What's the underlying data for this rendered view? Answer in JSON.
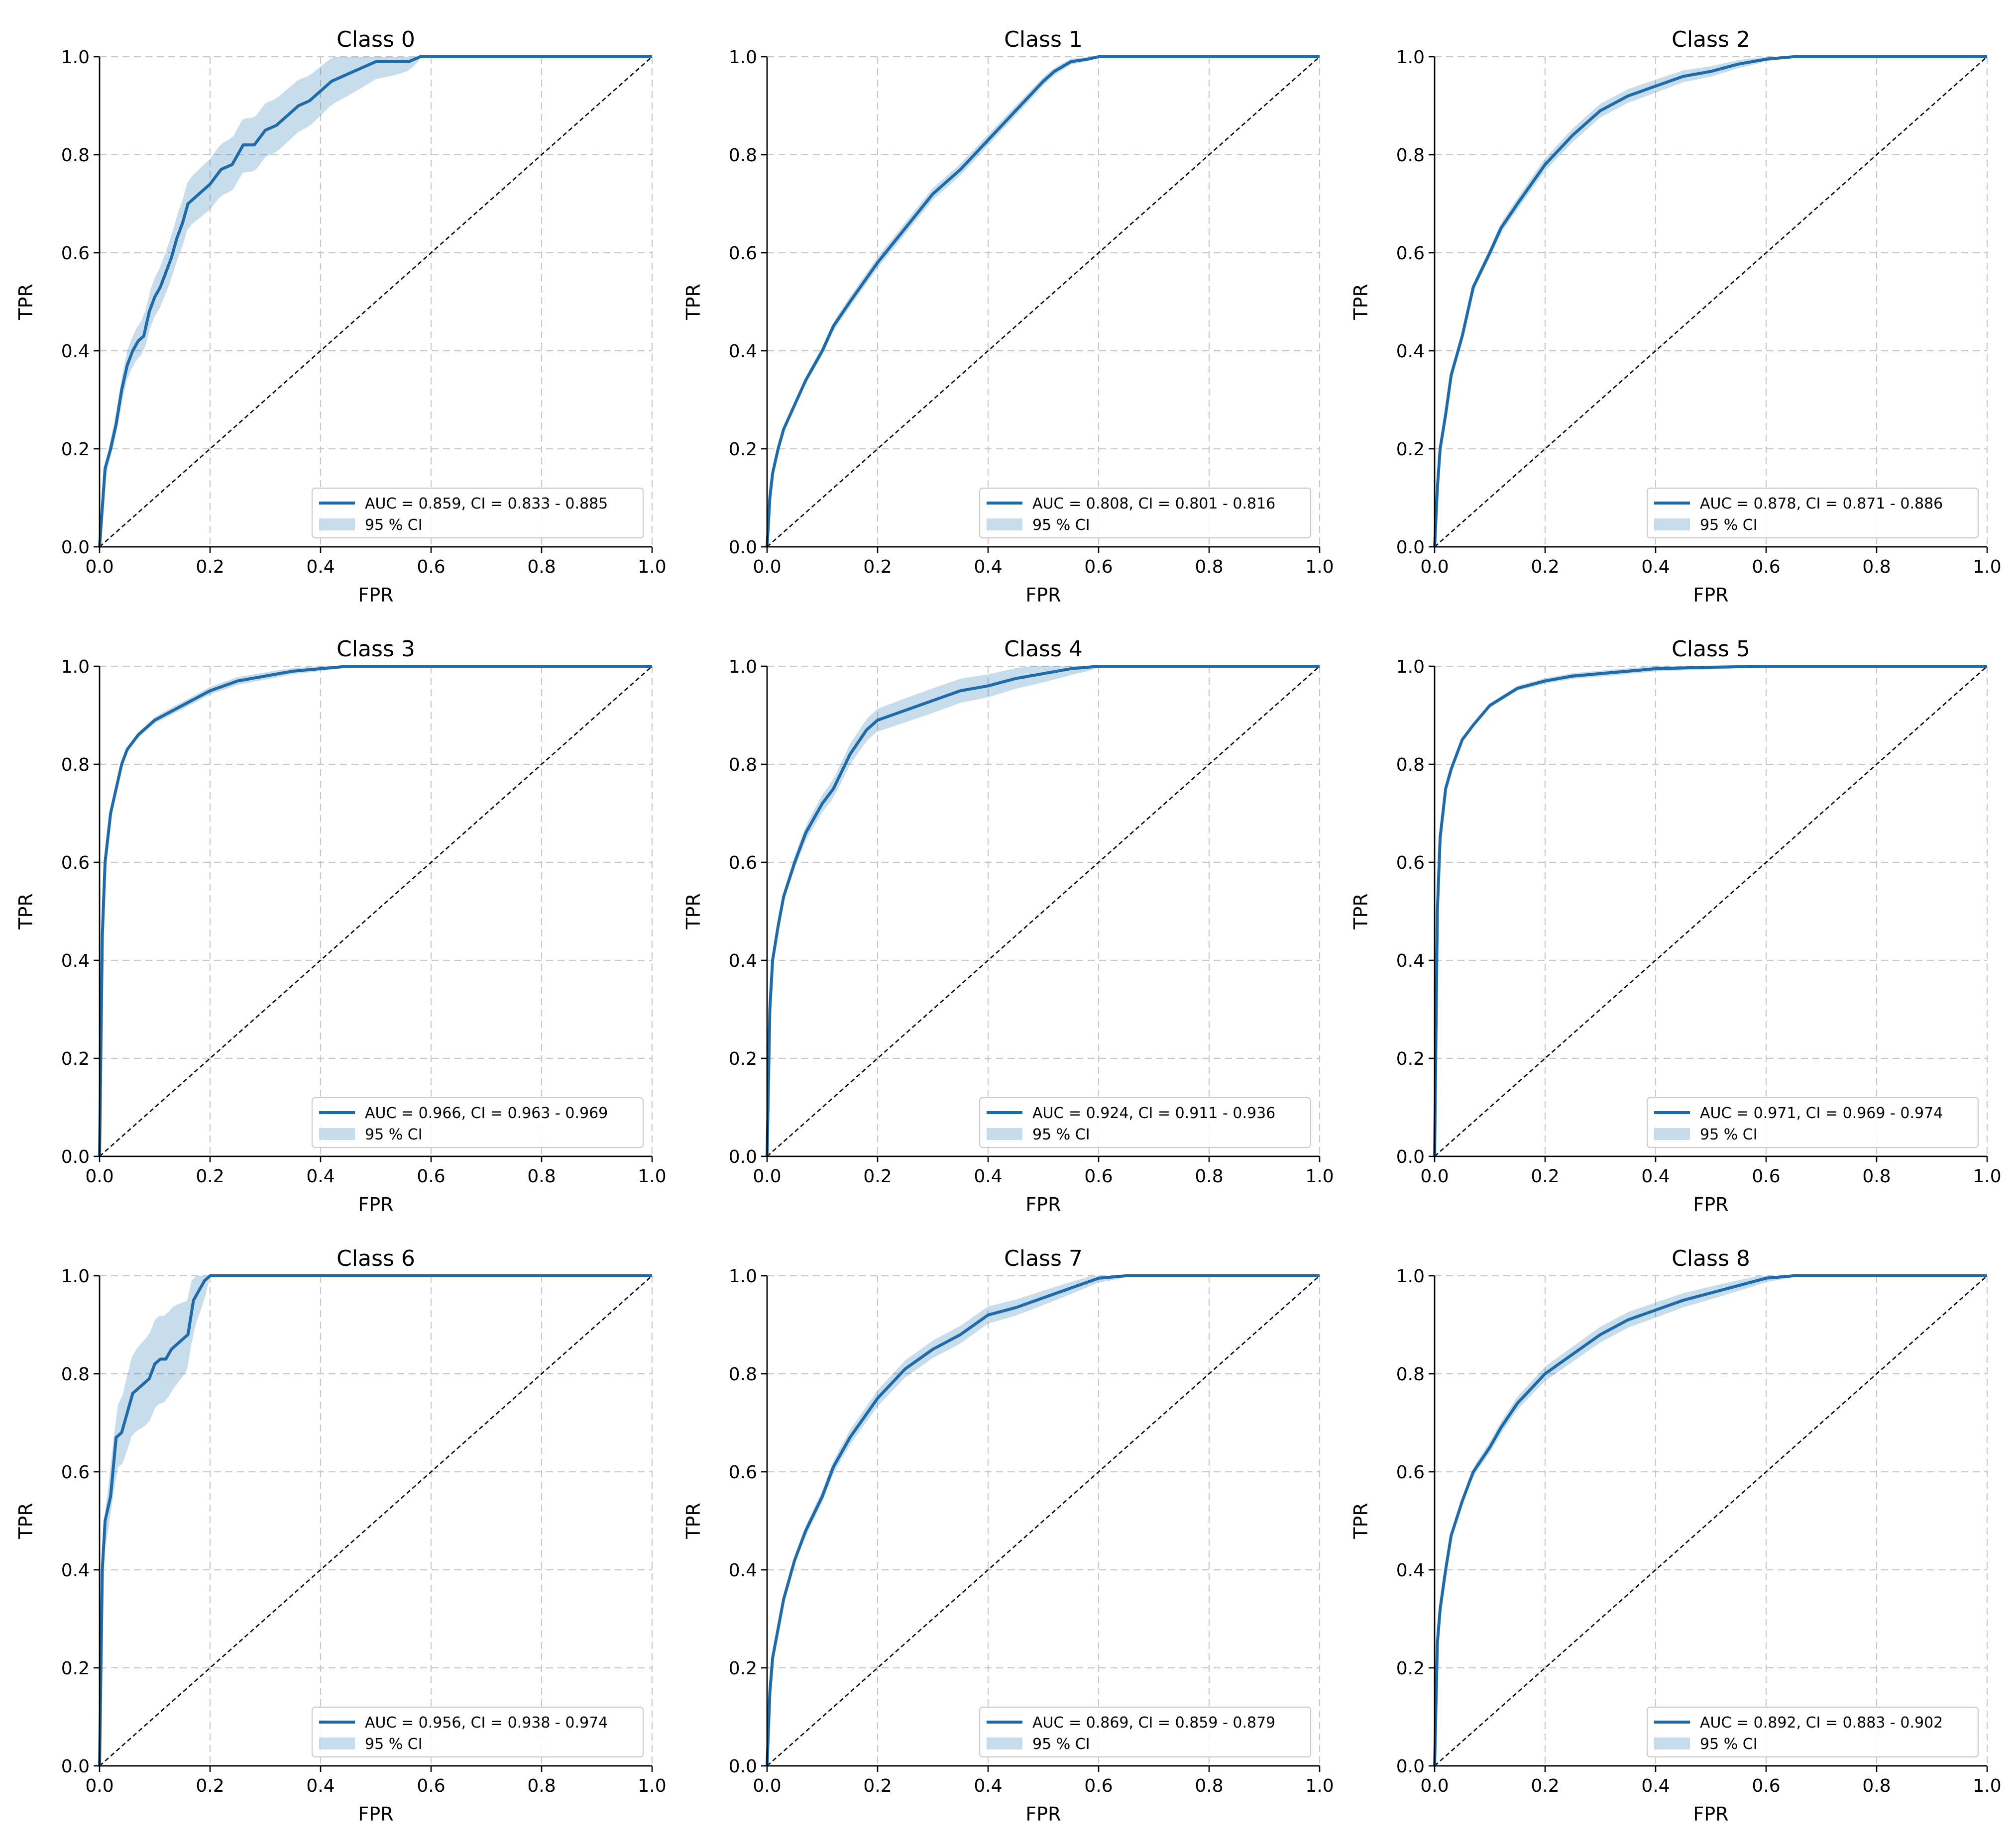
{
  "figure": {
    "accent_color": "#1f6aa8",
    "band_color": "#1f77b4"
  },
  "chart_data": [
    {
      "type": "line",
      "title": "Class 0",
      "xlabel": "FPR",
      "ylabel": "TPR",
      "xlim": [
        0,
        1
      ],
      "ylim": [
        0,
        1
      ],
      "grid": true,
      "legend_position": "bottom-right",
      "xticks": [
        "0.0",
        "0.2",
        "0.4",
        "0.6",
        "0.8",
        "1.0"
      ],
      "yticks": [
        "0.0",
        "0.2",
        "0.4",
        "0.6",
        "0.8",
        "1.0"
      ],
      "legend": [
        "AUC = 0.859, CI = 0.833 - 0.885",
        "95 % CI"
      ],
      "auc": 0.859,
      "ci": [
        0.833,
        0.885
      ],
      "roc": {
        "x": [
          0,
          0.01,
          0.02,
          0.03,
          0.04,
          0.05,
          0.06,
          0.07,
          0.08,
          0.09,
          0.1,
          0.11,
          0.12,
          0.13,
          0.14,
          0.15,
          0.16,
          0.17,
          0.18,
          0.2,
          0.22,
          0.24,
          0.26,
          0.28,
          0.3,
          0.32,
          0.34,
          0.36,
          0.38,
          0.4,
          0.42,
          0.44,
          0.46,
          0.48,
          0.5,
          0.52,
          0.54,
          0.56,
          0.58,
          0.6,
          1.0
        ],
        "y": [
          0,
          0.16,
          0.2,
          0.25,
          0.32,
          0.37,
          0.4,
          0.42,
          0.43,
          0.48,
          0.51,
          0.53,
          0.56,
          0.59,
          0.63,
          0.66,
          0.7,
          0.71,
          0.72,
          0.74,
          0.77,
          0.78,
          0.82,
          0.82,
          0.85,
          0.86,
          0.88,
          0.9,
          0.91,
          0.93,
          0.95,
          0.96,
          0.97,
          0.98,
          0.99,
          0.99,
          0.99,
          0.99,
          1.0,
          1.0,
          1.0
        ]
      },
      "ci_width": 0.055,
      "ci_extent": 0.58
    },
    {
      "type": "line",
      "title": "Class 1",
      "xlabel": "FPR",
      "ylabel": "TPR",
      "xlim": [
        0,
        1
      ],
      "ylim": [
        0,
        1
      ],
      "grid": true,
      "legend_position": "bottom-right",
      "xticks": [
        "0.0",
        "0.2",
        "0.4",
        "0.6",
        "0.8",
        "1.0"
      ],
      "yticks": [
        "0.0",
        "0.2",
        "0.4",
        "0.6",
        "0.8",
        "1.0"
      ],
      "legend": [
        "AUC = 0.808, CI = 0.801 - 0.816",
        "95 % CI"
      ],
      "auc": 0.808,
      "ci": [
        0.801,
        0.816
      ],
      "roc": {
        "x": [
          0,
          0.005,
          0.01,
          0.02,
          0.03,
          0.05,
          0.07,
          0.1,
          0.12,
          0.15,
          0.2,
          0.25,
          0.3,
          0.35,
          0.4,
          0.45,
          0.5,
          0.52,
          0.55,
          0.58,
          0.6,
          0.65,
          1.0
        ],
        "y": [
          0,
          0.1,
          0.15,
          0.2,
          0.24,
          0.29,
          0.34,
          0.4,
          0.45,
          0.5,
          0.58,
          0.65,
          0.72,
          0.77,
          0.83,
          0.89,
          0.95,
          0.97,
          0.99,
          0.995,
          1.0,
          1.0,
          1.0
        ]
      },
      "ci_width": 0.012,
      "ci_extent": 0.6
    },
    {
      "type": "line",
      "title": "Class 2",
      "xlabel": "FPR",
      "ylabel": "TPR",
      "xlim": [
        0,
        1
      ],
      "ylim": [
        0,
        1
      ],
      "grid": true,
      "legend_position": "bottom-right",
      "xticks": [
        "0.0",
        "0.2",
        "0.4",
        "0.6",
        "0.8",
        "1.0"
      ],
      "yticks": [
        "0.0",
        "0.2",
        "0.4",
        "0.6",
        "0.8",
        "1.0"
      ],
      "legend": [
        "AUC = 0.878, CI = 0.871 - 0.886",
        "95 % CI"
      ],
      "auc": 0.878,
      "ci": [
        0.871,
        0.886
      ],
      "roc": {
        "x": [
          0,
          0.005,
          0.01,
          0.02,
          0.03,
          0.05,
          0.07,
          0.1,
          0.12,
          0.15,
          0.2,
          0.25,
          0.3,
          0.35,
          0.4,
          0.45,
          0.5,
          0.55,
          0.6,
          0.65,
          1.0
        ],
        "y": [
          0,
          0.12,
          0.2,
          0.27,
          0.35,
          0.43,
          0.53,
          0.6,
          0.65,
          0.7,
          0.78,
          0.84,
          0.89,
          0.92,
          0.94,
          0.96,
          0.97,
          0.985,
          0.995,
          1.0,
          1.0
        ]
      },
      "ci_width": 0.014,
      "ci_extent": 0.62
    },
    {
      "type": "line",
      "title": "Class 3",
      "xlabel": "FPR",
      "ylabel": "TPR",
      "xlim": [
        0,
        1
      ],
      "ylim": [
        0,
        1
      ],
      "grid": true,
      "legend_position": "bottom-right",
      "xticks": [
        "0.0",
        "0.2",
        "0.4",
        "0.6",
        "0.8",
        "1.0"
      ],
      "yticks": [
        "0.0",
        "0.2",
        "0.4",
        "0.6",
        "0.8",
        "1.0"
      ],
      "legend": [
        "AUC = 0.966, CI = 0.963 - 0.969",
        "95 % CI"
      ],
      "auc": 0.966,
      "ci": [
        0.963,
        0.969
      ],
      "roc": {
        "x": [
          0,
          0.005,
          0.01,
          0.02,
          0.03,
          0.04,
          0.05,
          0.07,
          0.1,
          0.15,
          0.2,
          0.25,
          0.3,
          0.35,
          0.4,
          0.45,
          0.5,
          1.0
        ],
        "y": [
          0,
          0.45,
          0.6,
          0.7,
          0.75,
          0.8,
          0.83,
          0.86,
          0.89,
          0.92,
          0.95,
          0.97,
          0.98,
          0.99,
          0.995,
          1.0,
          1.0,
          1.0
        ]
      },
      "ci_width": 0.008,
      "ci_extent": 0.45
    },
    {
      "type": "line",
      "title": "Class 4",
      "xlabel": "FPR",
      "ylabel": "TPR",
      "xlim": [
        0,
        1
      ],
      "ylim": [
        0,
        1
      ],
      "grid": true,
      "legend_position": "bottom-right",
      "xticks": [
        "0.0",
        "0.2",
        "0.4",
        "0.6",
        "0.8",
        "1.0"
      ],
      "yticks": [
        "0.0",
        "0.2",
        "0.4",
        "0.6",
        "0.8",
        "1.0"
      ],
      "legend": [
        "AUC = 0.924, CI = 0.911 - 0.936",
        "95 % CI"
      ],
      "auc": 0.924,
      "ci": [
        0.911,
        0.936
      ],
      "roc": {
        "x": [
          0,
          0.005,
          0.01,
          0.02,
          0.03,
          0.05,
          0.07,
          0.09,
          0.1,
          0.12,
          0.15,
          0.18,
          0.2,
          0.25,
          0.3,
          0.35,
          0.4,
          0.45,
          0.5,
          0.55,
          0.6,
          1.0
        ],
        "y": [
          0,
          0.3,
          0.4,
          0.47,
          0.53,
          0.6,
          0.66,
          0.7,
          0.72,
          0.75,
          0.82,
          0.87,
          0.89,
          0.91,
          0.93,
          0.95,
          0.96,
          0.975,
          0.985,
          0.995,
          1.0,
          1.0
        ]
      },
      "ci_width": 0.025,
      "ci_extent": 0.6
    },
    {
      "type": "line",
      "title": "Class 5",
      "xlabel": "FPR",
      "ylabel": "TPR",
      "xlim": [
        0,
        1
      ],
      "ylim": [
        0,
        1
      ],
      "grid": true,
      "legend_position": "bottom-right",
      "xticks": [
        "0.0",
        "0.2",
        "0.4",
        "0.6",
        "0.8",
        "1.0"
      ],
      "yticks": [
        "0.0",
        "0.2",
        "0.4",
        "0.6",
        "0.8",
        "1.0"
      ],
      "legend": [
        "AUC = 0.971, CI = 0.969 - 0.974",
        "95 % CI"
      ],
      "auc": 0.971,
      "ci": [
        0.969,
        0.974
      ],
      "roc": {
        "x": [
          0,
          0.005,
          0.01,
          0.02,
          0.03,
          0.04,
          0.05,
          0.07,
          0.1,
          0.15,
          0.2,
          0.25,
          0.3,
          0.35,
          0.4,
          0.5,
          0.6,
          1.0
        ],
        "y": [
          0,
          0.5,
          0.65,
          0.75,
          0.79,
          0.82,
          0.85,
          0.88,
          0.92,
          0.955,
          0.97,
          0.98,
          0.985,
          0.99,
          0.995,
          0.998,
          1.0,
          1.0
        ]
      },
      "ci_width": 0.006,
      "ci_extent": 0.6
    },
    {
      "type": "line",
      "title": "Class 6",
      "xlabel": "FPR",
      "ylabel": "TPR",
      "xlim": [
        0,
        1
      ],
      "ylim": [
        0,
        1
      ],
      "grid": true,
      "legend_position": "bottom-right",
      "xticks": [
        "0.0",
        "0.2",
        "0.4",
        "0.6",
        "0.8",
        "1.0"
      ],
      "yticks": [
        "0.0",
        "0.2",
        "0.4",
        "0.6",
        "0.8",
        "1.0"
      ],
      "legend": [
        "AUC = 0.956, CI = 0.938 - 0.974",
        "95 % CI"
      ],
      "auc": 0.956,
      "ci": [
        0.938,
        0.974
      ],
      "roc": {
        "x": [
          0,
          0.005,
          0.01,
          0.02,
          0.03,
          0.04,
          0.05,
          0.06,
          0.07,
          0.08,
          0.09,
          0.1,
          0.11,
          0.12,
          0.13,
          0.14,
          0.15,
          0.16,
          0.17,
          0.18,
          0.19,
          0.2,
          1.0
        ],
        "y": [
          0,
          0.4,
          0.5,
          0.55,
          0.67,
          0.68,
          0.72,
          0.76,
          0.77,
          0.78,
          0.79,
          0.82,
          0.83,
          0.83,
          0.85,
          0.86,
          0.87,
          0.88,
          0.95,
          0.97,
          0.99,
          1.0,
          1.0
        ]
      },
      "ci_width": 0.09,
      "ci_extent": 0.2
    },
    {
      "type": "line",
      "title": "Class 7",
      "xlabel": "FPR",
      "ylabel": "TPR",
      "xlim": [
        0,
        1
      ],
      "ylim": [
        0,
        1
      ],
      "grid": true,
      "legend_position": "bottom-right",
      "xticks": [
        "0.0",
        "0.2",
        "0.4",
        "0.6",
        "0.8",
        "1.0"
      ],
      "yticks": [
        "0.0",
        "0.2",
        "0.4",
        "0.6",
        "0.8",
        "1.0"
      ],
      "legend": [
        "AUC = 0.869, CI = 0.859 - 0.879",
        "95 % CI"
      ],
      "auc": 0.869,
      "ci": [
        0.859,
        0.879
      ],
      "roc": {
        "x": [
          0,
          0.005,
          0.01,
          0.02,
          0.03,
          0.05,
          0.07,
          0.1,
          0.12,
          0.15,
          0.2,
          0.25,
          0.3,
          0.35,
          0.4,
          0.45,
          0.5,
          0.55,
          0.6,
          0.65,
          1.0
        ],
        "y": [
          0,
          0.15,
          0.22,
          0.28,
          0.34,
          0.42,
          0.48,
          0.55,
          0.61,
          0.67,
          0.75,
          0.81,
          0.85,
          0.88,
          0.92,
          0.935,
          0.955,
          0.975,
          0.995,
          1.0,
          1.0
        ]
      },
      "ci_width": 0.018,
      "ci_extent": 0.65
    },
    {
      "type": "line",
      "title": "Class 8",
      "xlabel": "FPR",
      "ylabel": "TPR",
      "xlim": [
        0,
        1
      ],
      "ylim": [
        0,
        1
      ],
      "grid": true,
      "legend_position": "bottom-right",
      "xticks": [
        "0.0",
        "0.2",
        "0.4",
        "0.6",
        "0.8",
        "1.0"
      ],
      "yticks": [
        "0.0",
        "0.2",
        "0.4",
        "0.6",
        "0.8",
        "1.0"
      ],
      "legend": [
        "AUC = 0.892, CI = 0.883 - 0.902",
        "95 % CI"
      ],
      "auc": 0.892,
      "ci": [
        0.883,
        0.902
      ],
      "roc": {
        "x": [
          0,
          0.005,
          0.01,
          0.02,
          0.03,
          0.05,
          0.07,
          0.1,
          0.12,
          0.15,
          0.2,
          0.25,
          0.3,
          0.35,
          0.4,
          0.45,
          0.5,
          0.55,
          0.6,
          0.65,
          1.0
        ],
        "y": [
          0,
          0.25,
          0.32,
          0.4,
          0.47,
          0.54,
          0.6,
          0.65,
          0.69,
          0.74,
          0.8,
          0.84,
          0.88,
          0.91,
          0.93,
          0.95,
          0.965,
          0.98,
          0.995,
          1.0,
          1.0
        ]
      },
      "ci_width": 0.016,
      "ci_extent": 0.65
    }
  ]
}
